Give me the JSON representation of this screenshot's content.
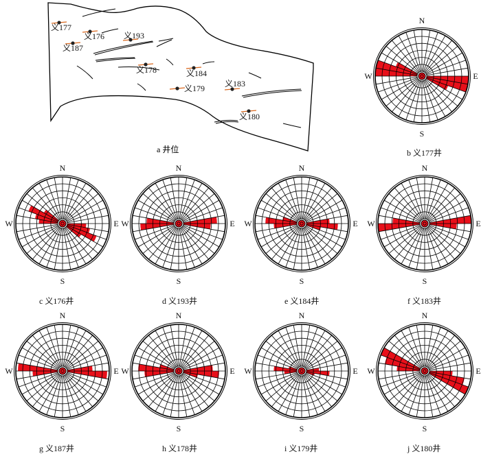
{
  "map": {
    "caption": "a  井位",
    "wells": [
      {
        "label": "义177"
      },
      {
        "label": "义176"
      },
      {
        "label": "义193"
      },
      {
        "label": "义187"
      },
      {
        "label": "义178"
      },
      {
        "label": "义184"
      },
      {
        "label": "义179"
      },
      {
        "label": "义183"
      },
      {
        "label": "义180"
      }
    ]
  },
  "compass": {
    "n": "N",
    "e": "E",
    "s": "S",
    "w": "W"
  },
  "colors": {
    "petal": "#e8101a",
    "line": "#000000",
    "marker": "#d9661c"
  },
  "roses": [
    {
      "caption": "b  义177井",
      "petals": [
        {
          "deg": 95,
          "r": 1.0
        },
        {
          "deg": 105,
          "r": 1.0
        },
        {
          "deg": 115,
          "r": 0.55
        }
      ]
    },
    {
      "caption": "c  义176井",
      "petals": [
        {
          "deg": 95,
          "r": 0.45
        },
        {
          "deg": 105,
          "r": 0.55
        },
        {
          "deg": 115,
          "r": 0.75
        },
        {
          "deg": 125,
          "r": 0.4
        }
      ]
    },
    {
      "caption": "d  义193井",
      "petals": [
        {
          "deg": 85,
          "r": 0.8
        },
        {
          "deg": 95,
          "r": 0.65
        }
      ]
    },
    {
      "caption": "e  义184井",
      "petals": [
        {
          "deg": 85,
          "r": 0.55
        },
        {
          "deg": 95,
          "r": 0.75
        },
        {
          "deg": 105,
          "r": 0.35
        }
      ]
    },
    {
      "caption": "f  义183井",
      "petals": [
        {
          "deg": 85,
          "r": 1.0
        },
        {
          "deg": 95,
          "r": 0.65
        }
      ]
    },
    {
      "caption": "g  义187井",
      "petals": [
        {
          "deg": 85,
          "r": 0.6
        },
        {
          "deg": 95,
          "r": 0.95
        }
      ]
    },
    {
      "caption": "h  义178井",
      "petals": [
        {
          "deg": 85,
          "r": 0.7
        },
        {
          "deg": 95,
          "r": 0.85
        },
        {
          "deg": 105,
          "r": 0.35
        }
      ]
    },
    {
      "caption": "i  义179井",
      "petals": [
        {
          "deg": 85,
          "r": 0.3
        },
        {
          "deg": 95,
          "r": 0.55
        },
        {
          "deg": 105,
          "r": 0.2
        }
      ]
    },
    {
      "caption": "j  义180井",
      "petals": [
        {
          "deg": 95,
          "r": 0.55
        },
        {
          "deg": 105,
          "r": 0.85
        },
        {
          "deg": 115,
          "r": 1.0
        }
      ]
    }
  ]
}
